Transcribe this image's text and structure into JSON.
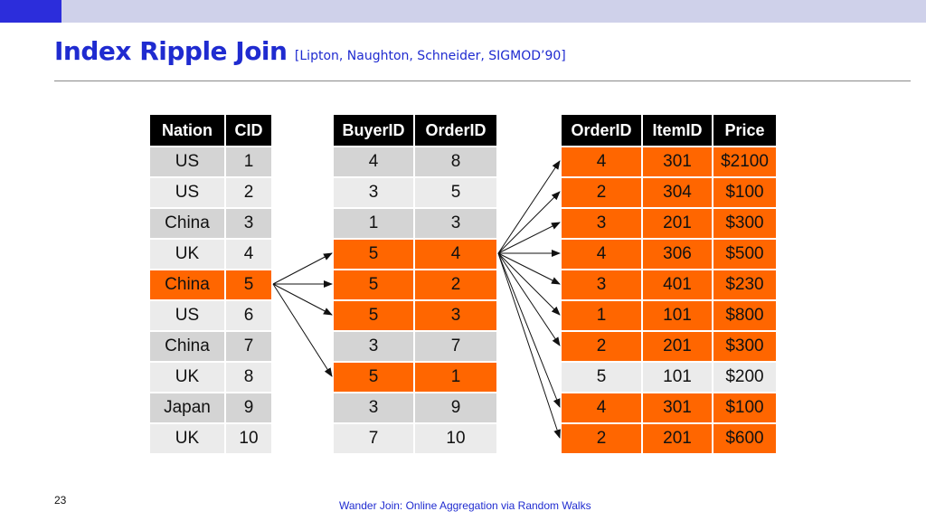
{
  "slide": {
    "title": "Index Ripple Join",
    "citation": "[Lipton, Naughton, Schneider, SIGMOD’90]",
    "page_number": "23",
    "footer": "Wander Join: Online Aggregation via Random Walks"
  },
  "colors": {
    "accent": "#1f2bd0",
    "highlight": "#ff6600",
    "header": "#000000"
  },
  "tables": [
    {
      "headers": [
        "Nation",
        "CID"
      ],
      "rows": [
        {
          "cells": [
            "US",
            "1"
          ],
          "highlight": false
        },
        {
          "cells": [
            "US",
            "2"
          ],
          "highlight": false
        },
        {
          "cells": [
            "China",
            "3"
          ],
          "highlight": false
        },
        {
          "cells": [
            "UK",
            "4"
          ],
          "highlight": false
        },
        {
          "cells": [
            "China",
            "5"
          ],
          "highlight": true
        },
        {
          "cells": [
            "US",
            "6"
          ],
          "highlight": false
        },
        {
          "cells": [
            "China",
            "7"
          ],
          "highlight": false
        },
        {
          "cells": [
            "UK",
            "8"
          ],
          "highlight": false
        },
        {
          "cells": [
            "Japan",
            "9"
          ],
          "highlight": false
        },
        {
          "cells": [
            "UK",
            "10"
          ],
          "highlight": false
        }
      ]
    },
    {
      "headers": [
        "BuyerID",
        "OrderID"
      ],
      "rows": [
        {
          "cells": [
            "4",
            "8"
          ],
          "highlight": false
        },
        {
          "cells": [
            "3",
            "5"
          ],
          "highlight": false
        },
        {
          "cells": [
            "1",
            "3"
          ],
          "highlight": false
        },
        {
          "cells": [
            "5",
            "4"
          ],
          "highlight": true
        },
        {
          "cells": [
            "5",
            "2"
          ],
          "highlight": true
        },
        {
          "cells": [
            "5",
            "3"
          ],
          "highlight": true
        },
        {
          "cells": [
            "3",
            "7"
          ],
          "highlight": false
        },
        {
          "cells": [
            "5",
            "1"
          ],
          "highlight": true
        },
        {
          "cells": [
            "3",
            "9"
          ],
          "highlight": false
        },
        {
          "cells": [
            "7",
            "10"
          ],
          "highlight": false
        }
      ]
    },
    {
      "headers": [
        "OrderID",
        "ItemID",
        "Price"
      ],
      "rows": [
        {
          "cells": [
            "4",
            "301",
            "$2100"
          ],
          "highlight": true
        },
        {
          "cells": [
            "2",
            "304",
            "$100"
          ],
          "highlight": true
        },
        {
          "cells": [
            "3",
            "201",
            "$300"
          ],
          "highlight": true
        },
        {
          "cells": [
            "4",
            "306",
            "$500"
          ],
          "highlight": true
        },
        {
          "cells": [
            "3",
            "401",
            "$230"
          ],
          "highlight": true
        },
        {
          "cells": [
            "1",
            "101",
            "$800"
          ],
          "highlight": true
        },
        {
          "cells": [
            "2",
            "201",
            "$300"
          ],
          "highlight": true
        },
        {
          "cells": [
            "5",
            "101",
            "$200"
          ],
          "highlight": false
        },
        {
          "cells": [
            "4",
            "301",
            "$100"
          ],
          "highlight": true
        },
        {
          "cells": [
            "2",
            "201",
            "$600"
          ],
          "highlight": true
        }
      ]
    }
  ],
  "links": {
    "t1_to_t2": {
      "from": 4,
      "to": [
        3,
        4,
        5,
        7
      ]
    },
    "t2_to_t3": {
      "from": 3,
      "to": [
        0,
        1,
        2,
        3,
        4,
        5,
        6,
        8,
        9
      ]
    }
  }
}
